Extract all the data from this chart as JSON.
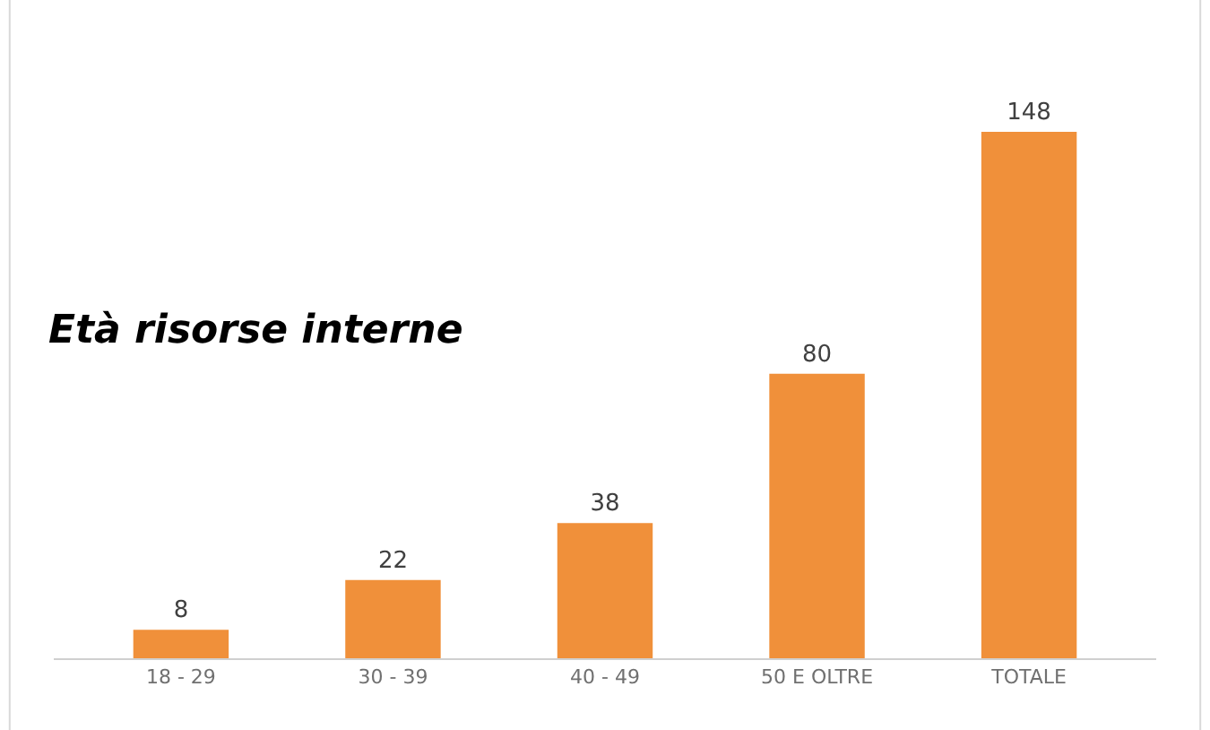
{
  "chart_data": {
    "type": "bar",
    "title": "Età risorse interne",
    "categories": [
      "18 - 29",
      "30 - 39",
      "40 - 49",
      "50 E OLTRE",
      "TOTALE"
    ],
    "values": [
      8,
      22,
      38,
      80,
      148
    ],
    "color": "#f0903a",
    "data_labels": true
  }
}
